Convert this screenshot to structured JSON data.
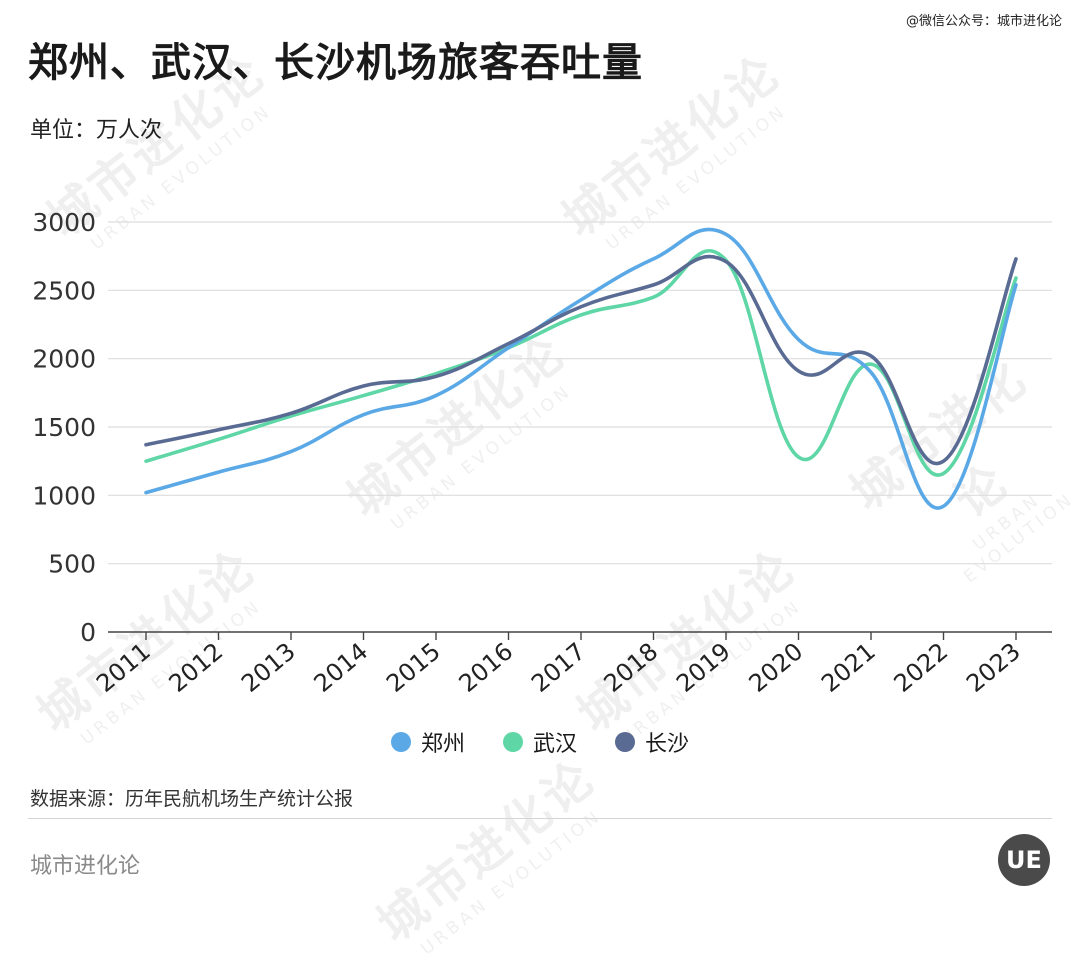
{
  "header": {
    "title": "郑州、武汉、长沙机场旅客吞吐量",
    "unit": "单位：万人次",
    "credit": "@微信公众号：城市进化论"
  },
  "legend": [
    {
      "label": "郑州",
      "color": "#5aa9e6"
    },
    {
      "label": "武汉",
      "color": "#5ed6a6"
    },
    {
      "label": "长沙",
      "color": "#596a93"
    }
  ],
  "footer": {
    "source": "数据来源：历年民航机场生产统计公报",
    "brand": "城市进化论",
    "logo_text": "UE",
    "watermark_text": "城市进化论",
    "watermark_sub": "URBAN EVOLUTION"
  },
  "chart_data": {
    "type": "line",
    "title": "郑州、武汉、长沙机场旅客吞吐量",
    "ylabel": "单位：万人次",
    "categories": [
      "2011",
      "2012",
      "2013",
      "2014",
      "2015",
      "2016",
      "2017",
      "2018",
      "2019",
      "2020",
      "2021",
      "2022",
      "2023"
    ],
    "yticks": [
      0,
      500,
      1000,
      1500,
      2000,
      2500,
      3000
    ],
    "ylim": [
      0,
      3000
    ],
    "grid": true,
    "legend_position": "bottom",
    "series": [
      {
        "name": "郑州",
        "color": "#5aa9e6",
        "values": [
          1020,
          1170,
          1320,
          1590,
          1730,
          2080,
          2430,
          2730,
          2910,
          2140,
          1900,
          920,
          2540
        ]
      },
      {
        "name": "武汉",
        "color": "#5ed6a6",
        "values": [
          1250,
          1410,
          1580,
          1730,
          1890,
          2080,
          2320,
          2450,
          2720,
          1280,
          1960,
          1160,
          2590
        ]
      },
      {
        "name": "长沙",
        "color": "#596a93",
        "values": [
          1370,
          1480,
          1600,
          1800,
          1870,
          2110,
          2380,
          2540,
          2710,
          1910,
          2020,
          1250,
          2730
        ]
      }
    ]
  }
}
